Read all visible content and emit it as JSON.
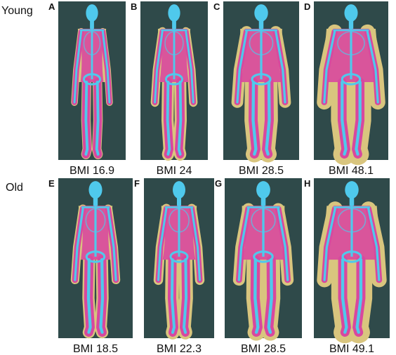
{
  "rows": [
    {
      "label": "Young",
      "panels": [
        {
          "letter": "A",
          "caption": "BMI 16.9"
        },
        {
          "letter": "B",
          "caption": "BMI 24"
        },
        {
          "letter": "C",
          "caption": "BMI 28.5"
        },
        {
          "letter": "D",
          "caption": "BMI 48.1"
        }
      ]
    },
    {
      "label": "Old",
      "panels": [
        {
          "letter": "E",
          "caption": "BMI 18.5"
        },
        {
          "letter": "F",
          "caption": "BMI 22.3"
        },
        {
          "letter": "G",
          "caption": "BMI 28.5"
        },
        {
          "letter": "H",
          "caption": "BMI 49.1"
        }
      ]
    }
  ]
}
